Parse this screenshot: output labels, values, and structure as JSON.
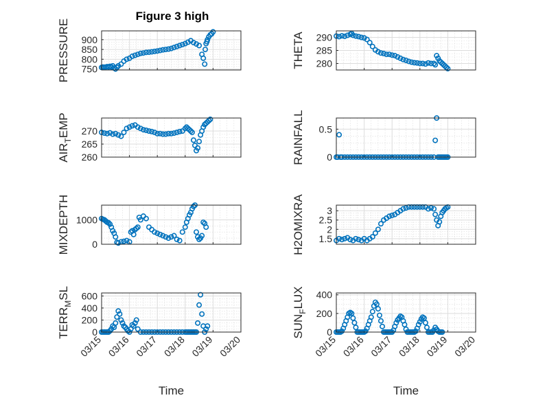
{
  "figure": {
    "title": "Figure 3 high"
  },
  "chart_data": [
    {
      "type": "scatter",
      "ylabel": "PRESSURE",
      "ylim": [
        745,
        945
      ],
      "yticks": [
        "750",
        "800",
        "850",
        "900"
      ],
      "xticks": [],
      "series": [
        {
          "x": [
            0.0,
            0.05,
            0.1,
            0.15,
            0.2,
            0.25,
            0.3,
            0.35,
            0.4,
            0.45,
            0.5,
            0.55,
            0.6,
            0.7,
            0.8,
            0.9,
            1.0,
            1.1,
            1.2,
            1.3,
            1.4,
            1.5,
            1.6,
            1.7,
            1.8,
            1.9,
            2.0,
            2.1,
            2.2,
            2.3,
            2.4,
            2.5,
            2.6,
            2.7,
            2.8,
            2.9,
            3.0,
            3.1,
            3.2,
            3.3,
            3.4,
            3.5,
            3.6,
            3.65,
            3.7,
            3.72,
            3.75,
            3.78,
            3.8,
            3.85,
            3.9,
            3.95,
            4.0
          ],
          "y": [
            758,
            760,
            758,
            760,
            762,
            760,
            764,
            760,
            766,
            755,
            750,
            758,
            766,
            775,
            790,
            800,
            805,
            815,
            820,
            825,
            830,
            832,
            835,
            836,
            838,
            840,
            842,
            845,
            848,
            850,
            852,
            855,
            860,
            865,
            870,
            875,
            880,
            887,
            895,
            885,
            878,
            870,
            825,
            805,
            775,
            850,
            880,
            890,
            900,
            915,
            925,
            930,
            940
          ]
        }
      ]
    },
    {
      "type": "scatter",
      "ylabel": "THETA",
      "ylim": [
        277.5,
        292.5
      ],
      "yticks": [
        "280",
        "285",
        "290"
      ],
      "xticks": [],
      "series": [
        {
          "x": [
            0.0,
            0.1,
            0.2,
            0.3,
            0.4,
            0.5,
            0.55,
            0.6,
            0.7,
            0.8,
            0.9,
            1.0,
            1.1,
            1.2,
            1.3,
            1.4,
            1.5,
            1.6,
            1.7,
            1.8,
            1.9,
            2.0,
            2.1,
            2.2,
            2.3,
            2.4,
            2.5,
            2.6,
            2.7,
            2.8,
            2.9,
            3.0,
            3.1,
            3.2,
            3.3,
            3.4,
            3.5,
            3.55,
            3.6,
            3.65,
            3.7,
            3.75,
            3.8,
            3.85,
            3.9,
            3.95,
            4.0
          ],
          "y": [
            290.5,
            290.3,
            290.6,
            290.4,
            290.8,
            291.2,
            291.5,
            290.8,
            290.5,
            290.3,
            290.0,
            289.8,
            289.2,
            288.0,
            286.5,
            285.2,
            284.5,
            284.0,
            283.8,
            283.5,
            283.5,
            283.2,
            283.0,
            282.5,
            282.0,
            281.5,
            281.2,
            280.8,
            280.5,
            280.3,
            280.2,
            280.0,
            280.0,
            279.8,
            280.2,
            280.0,
            280.0,
            279.5,
            283.0,
            282.0,
            281.0,
            280.5,
            280.0,
            279.5,
            279.0,
            278.5,
            278.0
          ]
        }
      ]
    },
    {
      "type": "scatter",
      "ylabel": "AIR_TEMP",
      "ylim": [
        260,
        275
      ],
      "yticks": [
        "260",
        "265",
        "270"
      ],
      "xticks": [],
      "series": [
        {
          "x": [
            0.0,
            0.1,
            0.2,
            0.3,
            0.4,
            0.5,
            0.6,
            0.7,
            0.8,
            0.9,
            1.0,
            1.1,
            1.2,
            1.3,
            1.4,
            1.5,
            1.6,
            1.7,
            1.8,
            1.9,
            2.0,
            2.1,
            2.2,
            2.3,
            2.4,
            2.5,
            2.6,
            2.7,
            2.8,
            2.9,
            3.0,
            3.05,
            3.1,
            3.15,
            3.2,
            3.25,
            3.3,
            3.35,
            3.4,
            3.45,
            3.5,
            3.55,
            3.6,
            3.65,
            3.7,
            3.75,
            3.8,
            3.85,
            3.9
          ],
          "y": [
            269.5,
            269.2,
            269.0,
            269.3,
            268.8,
            269.0,
            268.5,
            268.0,
            269.5,
            271.0,
            271.5,
            272.0,
            272.3,
            271.5,
            271.0,
            270.5,
            270.3,
            270.0,
            269.8,
            269.5,
            269.0,
            269.0,
            268.8,
            268.8,
            269.0,
            269.0,
            269.2,
            269.5,
            269.8,
            270.0,
            271.0,
            271.5,
            271.0,
            270.5,
            270.0,
            269.5,
            266.5,
            264.5,
            262.5,
            263.5,
            266.0,
            268.5,
            270.0,
            271.5,
            272.5,
            273.0,
            273.5,
            274.0,
            274.5
          ]
        }
      ]
    },
    {
      "type": "scatter",
      "ylabel": "RAINFALL",
      "ylim": [
        0,
        0.7
      ],
      "yticks": [
        "0",
        "0.5"
      ],
      "xticks": [],
      "series": [
        {
          "x": [
            0.0,
            0.05,
            0.1,
            0.15,
            0.2,
            0.3,
            0.4,
            0.5,
            0.6,
            0.7,
            0.8,
            0.9,
            1.0,
            1.1,
            1.2,
            1.3,
            1.4,
            1.5,
            1.6,
            1.7,
            1.8,
            1.9,
            2.0,
            2.1,
            2.2,
            2.3,
            2.4,
            2.5,
            2.6,
            2.7,
            2.8,
            2.9,
            3.0,
            3.1,
            3.2,
            3.3,
            3.4,
            3.5,
            3.55,
            3.6,
            3.65,
            3.7,
            3.75,
            3.8,
            3.85,
            3.9,
            3.95,
            4.0
          ],
          "y": [
            0,
            0,
            0.4,
            0,
            0,
            0,
            0,
            0,
            0,
            0,
            0,
            0,
            0,
            0,
            0,
            0,
            0,
            0,
            0,
            0,
            0,
            0,
            0,
            0,
            0,
            0,
            0,
            0,
            0,
            0,
            0,
            0,
            0,
            0,
            0,
            0,
            0,
            0,
            0.3,
            0.7,
            0,
            0,
            0,
            0,
            0,
            0,
            0,
            0
          ]
        }
      ]
    },
    {
      "type": "scatter",
      "ylabel": "MIXDEPTH",
      "ylim": [
        0,
        1600
      ],
      "yticks": [
        "0",
        "1000"
      ],
      "xticks": [],
      "series": [
        {
          "x": [
            0.0,
            0.05,
            0.1,
            0.15,
            0.2,
            0.25,
            0.3,
            0.35,
            0.4,
            0.45,
            0.5,
            0.55,
            0.6,
            0.7,
            0.8,
            0.9,
            1.0,
            1.05,
            1.1,
            1.15,
            1.2,
            1.25,
            1.3,
            1.35,
            1.4,
            1.5,
            1.6,
            1.7,
            1.8,
            1.9,
            2.0,
            2.1,
            2.2,
            2.3,
            2.4,
            2.5,
            2.6,
            2.7,
            2.8,
            2.9,
            3.0,
            3.05,
            3.1,
            3.15,
            3.2,
            3.25,
            3.3,
            3.35,
            3.4,
            3.45,
            3.5,
            3.55,
            3.6,
            3.65,
            3.7,
            3.75
          ],
          "y": [
            1050,
            1020,
            1000,
            950,
            900,
            880,
            820,
            700,
            550,
            450,
            300,
            80,
            50,
            100,
            120,
            150,
            100,
            500,
            550,
            400,
            600,
            650,
            700,
            1100,
            1000,
            1150,
            1050,
            700,
            600,
            500,
            450,
            400,
            350,
            300,
            250,
            300,
            350,
            200,
            150,
            500,
            700,
            900,
            1050,
            1200,
            1300,
            1450,
            1550,
            1600,
            500,
            300,
            200,
            250,
            350,
            900,
            850,
            700
          ]
        }
      ]
    },
    {
      "type": "scatter",
      "ylabel": "H2OMIXRA",
      "ylim": [
        1.2,
        3.3
      ],
      "yticks": [
        "1.5",
        "2",
        "2.5",
        "3"
      ],
      "xticks": [],
      "series": [
        {
          "x": [
            0.0,
            0.1,
            0.2,
            0.3,
            0.4,
            0.5,
            0.6,
            0.7,
            0.8,
            0.9,
            1.0,
            1.1,
            1.2,
            1.3,
            1.4,
            1.5,
            1.6,
            1.7,
            1.8,
            1.9,
            2.0,
            2.1,
            2.2,
            2.3,
            2.4,
            2.5,
            2.6,
            2.7,
            2.8,
            2.9,
            3.0,
            3.1,
            3.2,
            3.3,
            3.4,
            3.5,
            3.55,
            3.6,
            3.65,
            3.7,
            3.75,
            3.8,
            3.85,
            3.9,
            3.95,
            4.0
          ],
          "y": [
            1.4,
            1.5,
            1.45,
            1.5,
            1.55,
            1.45,
            1.4,
            1.5,
            1.45,
            1.4,
            1.5,
            1.4,
            1.5,
            1.6,
            1.8,
            2.0,
            2.3,
            2.5,
            2.6,
            2.7,
            2.75,
            2.8,
            2.9,
            3.0,
            3.1,
            3.15,
            3.2,
            3.2,
            3.2,
            3.2,
            3.2,
            3.2,
            3.2,
            3.1,
            3.15,
            3.1,
            2.8,
            2.5,
            2.2,
            2.4,
            2.7,
            2.9,
            3.0,
            3.1,
            3.15,
            3.2
          ]
        }
      ]
    },
    {
      "type": "scatter",
      "ylabel": "TERR_MSL",
      "ylim": [
        0,
        650
      ],
      "yticks": [
        "0",
        "200",
        "400",
        "600"
      ],
      "xticks": [
        "03/15",
        "03/16",
        "03/17",
        "03/18",
        "03/19",
        "03/20"
      ],
      "xlabel": "Time",
      "series": [
        {
          "x": [
            0.0,
            0.05,
            0.1,
            0.15,
            0.2,
            0.25,
            0.3,
            0.35,
            0.4,
            0.45,
            0.5,
            0.55,
            0.6,
            0.65,
            0.7,
            0.75,
            0.8,
            0.85,
            0.9,
            0.95,
            1.0,
            1.05,
            1.1,
            1.15,
            1.2,
            1.25,
            1.3,
            1.4,
            1.5,
            1.6,
            1.7,
            1.8,
            1.9,
            2.0,
            2.1,
            2.2,
            2.3,
            2.4,
            2.5,
            2.6,
            2.7,
            2.8,
            2.9,
            3.0,
            3.05,
            3.1,
            3.15,
            3.2,
            3.25,
            3.3,
            3.35,
            3.4,
            3.45,
            3.5,
            3.55,
            3.6,
            3.65,
            3.7,
            3.75,
            3.8
          ],
          "y": [
            0,
            0,
            0,
            0,
            0,
            0,
            20,
            50,
            100,
            80,
            150,
            250,
            350,
            300,
            200,
            150,
            100,
            80,
            50,
            20,
            0,
            50,
            120,
            100,
            150,
            200,
            50,
            0,
            0,
            0,
            0,
            0,
            0,
            0,
            0,
            0,
            0,
            0,
            0,
            0,
            0,
            0,
            0,
            0,
            0,
            0,
            0,
            0,
            0,
            0,
            0,
            0,
            150,
            450,
            620,
            300,
            100,
            0,
            50,
            100
          ]
        }
      ]
    },
    {
      "type": "scatter",
      "ylabel": "SUN_FLUX",
      "ylim": [
        0,
        420
      ],
      "yticks": [
        "0",
        "200",
        "400"
      ],
      "xticks": [
        "03/15",
        "03/16",
        "03/17",
        "03/18",
        "03/19",
        "03/20"
      ],
      "xlabel": "Time",
      "series": [
        {
          "x": [
            0.0,
            0.05,
            0.1,
            0.15,
            0.2,
            0.25,
            0.3,
            0.35,
            0.4,
            0.45,
            0.5,
            0.55,
            0.6,
            0.65,
            0.7,
            0.75,
            0.8,
            0.85,
            0.9,
            0.95,
            1.0,
            1.05,
            1.1,
            1.15,
            1.2,
            1.25,
            1.3,
            1.35,
            1.4,
            1.45,
            1.5,
            1.55,
            1.6,
            1.65,
            1.7,
            1.75,
            1.8,
            1.85,
            1.9,
            1.95,
            2.0,
            2.05,
            2.1,
            2.15,
            2.2,
            2.25,
            2.3,
            2.35,
            2.4,
            2.45,
            2.5,
            2.55,
            2.6,
            2.65,
            2.7,
            2.75,
            2.8,
            2.85,
            2.9,
            2.95,
            3.0,
            3.05,
            3.1,
            3.15,
            3.2,
            3.25,
            3.3,
            3.35,
            3.4,
            3.45,
            3.5,
            3.55,
            3.6,
            3.65,
            3.7,
            3.75,
            3.8
          ],
          "y": [
            0,
            0,
            0,
            0,
            10,
            40,
            80,
            120,
            160,
            200,
            210,
            200,
            150,
            100,
            50,
            0,
            0,
            0,
            0,
            0,
            0,
            10,
            40,
            80,
            120,
            160,
            220,
            280,
            320,
            300,
            250,
            180,
            120,
            60,
            0,
            0,
            0,
            0,
            0,
            0,
            0,
            20,
            60,
            100,
            130,
            150,
            170,
            160,
            120,
            80,
            30,
            0,
            0,
            0,
            0,
            0,
            0,
            10,
            40,
            80,
            110,
            140,
            160,
            150,
            100,
            50,
            0,
            0,
            0,
            0,
            20,
            50,
            30,
            10,
            0,
            0,
            0
          ]
        }
      ]
    }
  ]
}
